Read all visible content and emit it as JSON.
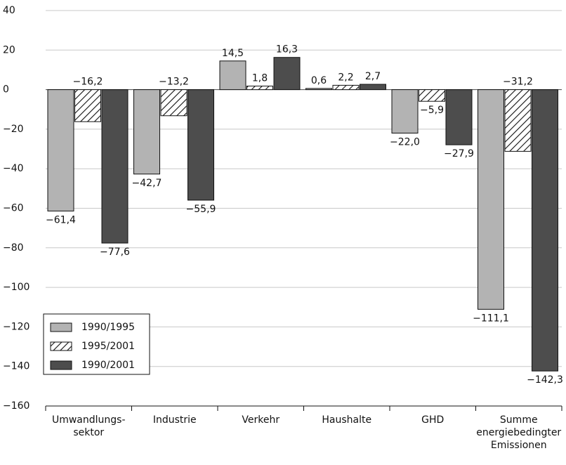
{
  "chart_data": {
    "type": "bar",
    "categories": [
      "Umwandlungs-\nsektor",
      "Industrie",
      "Verkehr",
      "Haushalte",
      "GHD",
      "Summe\nenergiebedingter\nEmissionen"
    ],
    "series": [
      {
        "name": "1990/1995",
        "color": "#b3b3b3",
        "values": [
          -61.4,
          -42.7,
          14.5,
          0.6,
          -22.0,
          -111.1
        ],
        "value_labels": [
          "−61,4",
          "−42,7",
          "14,5",
          "0,6",
          "−22,0",
          "−111,1"
        ]
      },
      {
        "name": "1995/2001",
        "color": "#ffffff",
        "pattern": "hatch",
        "values": [
          -16.2,
          -13.2,
          1.8,
          2.2,
          -5.9,
          -31.2
        ],
        "value_labels": [
          "−16,2",
          "−13,2",
          "1,8",
          "2,2",
          "−5,9",
          "−31,2"
        ]
      },
      {
        "name": "1990/2001",
        "color": "#4d4d4d",
        "values": [
          -77.6,
          -55.9,
          16.3,
          2.7,
          -27.9,
          -142.3
        ],
        "value_labels": [
          "−77,6",
          "−55,9",
          "16,3",
          "2,7",
          "−27,9",
          "−142,3"
        ]
      }
    ],
    "ylim": [
      -160,
      40
    ],
    "yticks": [
      {
        "value": -160,
        "label": "−160"
      },
      {
        "value": -140,
        "label": "−140"
      },
      {
        "value": -120,
        "label": "−120"
      },
      {
        "value": -100,
        "label": "−100"
      },
      {
        "value": -80,
        "label": "−80"
      },
      {
        "value": -60,
        "label": "−60"
      },
      {
        "value": -40,
        "label": "−40"
      },
      {
        "value": -20,
        "label": "−20"
      },
      0,
      20,
      40
    ],
    "grid": true,
    "legend": "lower left"
  }
}
